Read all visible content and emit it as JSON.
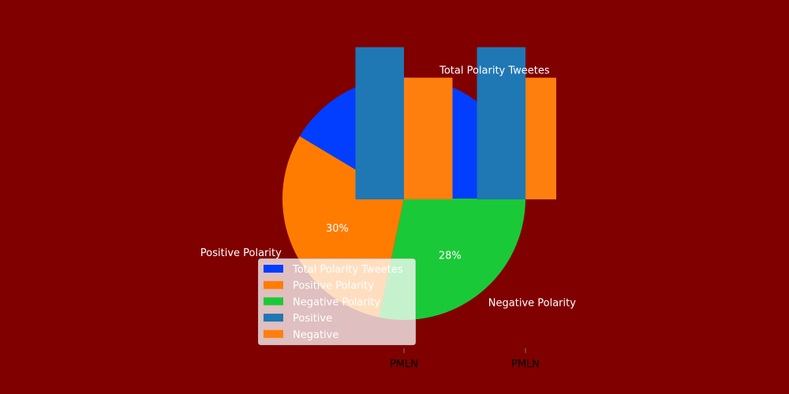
{
  "colors": {
    "background": "#800000",
    "label_text": "#ffffff",
    "tick_text": "#000000"
  },
  "chart_data": [
    {
      "type": "pie",
      "slices": [
        {
          "label": "Total Polarity Tweetes",
          "value": 41,
          "pct_label": "41%",
          "color": "#023eff"
        },
        {
          "label": "Positive Polarity",
          "value": 30,
          "pct_label": "30%",
          "color": "#ff7c00"
        },
        {
          "label": "Negative Polarity",
          "value": 28,
          "pct_label": "28%",
          "color": "#1ac938"
        }
      ]
    },
    {
      "type": "bar",
      "groups": [
        "PMLN",
        "PMLN"
      ],
      "series": [
        {
          "name": "Positive",
          "values": [
            5,
            5
          ],
          "color": "#1f77b4"
        },
        {
          "name": "Negative",
          "values": [
            4,
            4
          ],
          "color": "#ff7f0e"
        }
      ]
    }
  ],
  "legend": {
    "position": "lower-center",
    "items": [
      {
        "label": "Total Polarity Tweetes",
        "color": "#023eff"
      },
      {
        "label": "Positive Polarity",
        "color": "#ff7c00"
      },
      {
        "label": "Negative Polarity",
        "color": "#1ac938"
      },
      {
        "label": "Positive",
        "color": "#1f77b4"
      },
      {
        "label": "Negative",
        "color": "#ff7f0e"
      }
    ]
  }
}
